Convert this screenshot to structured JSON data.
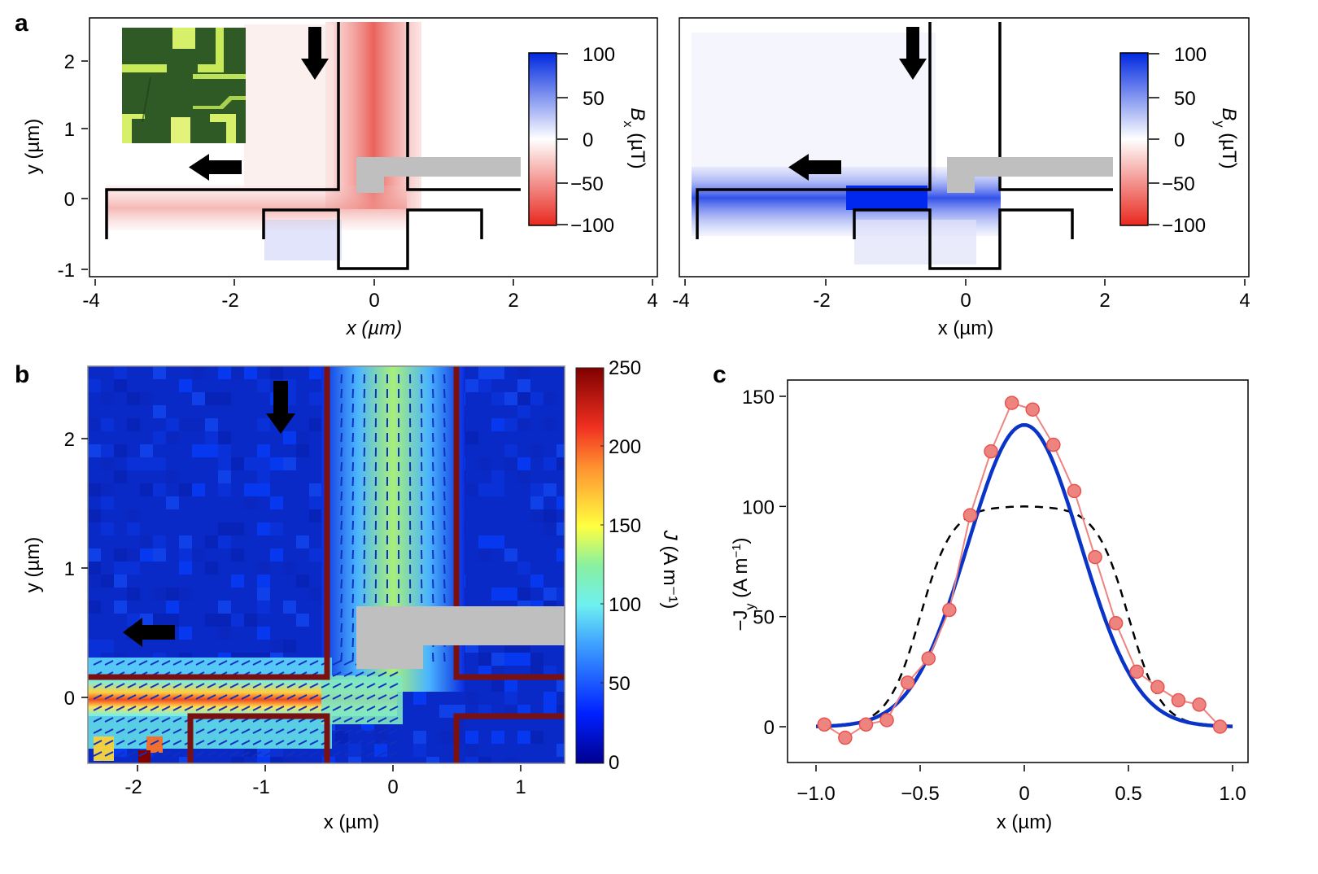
{
  "figure": {
    "panel_labels": [
      "a",
      "b",
      "c"
    ]
  },
  "chart_data": [
    {
      "panel": "a-left",
      "type": "heatmap",
      "quantity": "Bx",
      "xlabel": "x (µm)",
      "ylabel": "y (µm)",
      "xlim": [
        -4,
        4
      ],
      "ylim": [
        -1,
        2.5
      ],
      "xticks": [
        "-4",
        "-2",
        "0",
        "2",
        "4"
      ],
      "yticks": [
        "-1",
        "0",
        "1",
        "2"
      ],
      "colorbar": {
        "label": "B_x (µT)",
        "label_main": "B",
        "label_sub": "x",
        "label_unit": " (µT)",
        "range": [
          -100,
          100
        ],
        "ticks": [
          "100",
          "50",
          "0",
          "−50",
          "−100"
        ],
        "colors": {
          "high": "#0028e0",
          "mid": "#ffffff",
          "low": "#e8281e"
        }
      },
      "arrows": [
        {
          "direction": "down"
        },
        {
          "direction": "left"
        }
      ],
      "inset": "optical micrograph of device",
      "features": [
        {
          "description": "negative Bx along vertical channel",
          "x_range": [
            -0.5,
            0.5
          ],
          "value_approx": -70
        },
        {
          "description": "weak negative Bx along horizontal channel",
          "y_range": [
            -0.3,
            0.2
          ],
          "value_approx": -25
        },
        {
          "description": "weak positive Bx below junction",
          "x_range": [
            -1.5,
            -0.5
          ],
          "value_approx": 15
        }
      ]
    },
    {
      "panel": "a-right",
      "type": "heatmap",
      "quantity": "By",
      "xlabel": "x (µm)",
      "ylabel": "",
      "xlim": [
        -4,
        4
      ],
      "ylim": [
        -1,
        2.5
      ],
      "xticks": [
        "-4",
        "-2",
        "0",
        "2",
        "4"
      ],
      "colorbar": {
        "label": "B_y (µT)",
        "label_main": "B",
        "label_sub": "y",
        "label_unit": " (µT)",
        "range": [
          -100,
          100
        ],
        "ticks": [
          "100",
          "50",
          "0",
          "−50",
          "−100"
        ],
        "colors": {
          "high": "#0028e0",
          "mid": "#ffffff",
          "low": "#e8281e"
        }
      },
      "arrows": [
        {
          "direction": "down"
        },
        {
          "direction": "left"
        }
      ],
      "features": [
        {
          "description": "strong positive By along horizontal channel",
          "x_range": [
            -3.5,
            0.2
          ],
          "value_approx": 90
        }
      ]
    },
    {
      "panel": "b",
      "type": "heatmap",
      "quantity": "J",
      "xlabel": "x (µm)",
      "ylabel": "y (µm)",
      "xlim": [
        -2.3,
        1.3
      ],
      "ylim": [
        -0.5,
        2.55
      ],
      "xticks": [
        "-2",
        "-1",
        "0",
        "1"
      ],
      "yticks": [
        "0",
        "1",
        "2"
      ],
      "colorbar": {
        "label": "J (A m⁻¹)",
        "label_main": "J",
        "label_unit": " (A m⁻¹)",
        "range": [
          0,
          250
        ],
        "ticks": [
          "250",
          "200",
          "150",
          "100",
          "50",
          "0"
        ],
        "colormap": "jet"
      },
      "arrows": [
        {
          "direction": "down"
        },
        {
          "direction": "left"
        }
      ],
      "features": [
        {
          "description": "vertical channel current ~100-140 A/m",
          "x_range": [
            -0.5,
            0.5
          ]
        },
        {
          "description": "horizontal channel current peak ~230 A/m near x=-1",
          "y_range": [
            -0.15,
            0.15
          ]
        }
      ]
    },
    {
      "panel": "c",
      "type": "line",
      "xlabel": "x (µm)",
      "ylabel": "−J_y (A m⁻¹)",
      "ylabel_main": "−J",
      "ylabel_sub": "y",
      "ylabel_unit": " (A m",
      "ylabel_sup": "−1",
      "ylabel_end": ")",
      "xlim": [
        -1.05,
        1.08
      ],
      "ylim": [
        -17,
        157
      ],
      "xticks": [
        "−1.0",
        "−0.5",
        "0",
        "0.5",
        "1.0"
      ],
      "xtick_values": [
        -1.0,
        -0.5,
        0,
        0.5,
        1.0
      ],
      "yticks": [
        "0",
        "50",
        "100",
        "150"
      ],
      "ytick_values": [
        0,
        50,
        100,
        150
      ],
      "series": [
        {
          "name": "measured",
          "style": "markers+line",
          "color": "#ee8480",
          "edge": "#e8534e",
          "x": [
            -0.96,
            -0.86,
            -0.76,
            -0.66,
            -0.56,
            -0.46,
            -0.36,
            -0.26,
            -0.16,
            -0.06,
            0.04,
            0.14,
            0.24,
            0.34,
            0.44,
            0.54,
            0.64,
            0.74,
            0.84,
            0.94
          ],
          "y": [
            1,
            -5,
            1,
            3,
            20,
            31,
            53,
            96,
            125,
            147,
            144,
            128,
            107,
            77,
            47,
            25,
            18,
            12,
            10,
            0
          ]
        },
        {
          "name": "gaussian-fit",
          "style": "solid",
          "color": "#0a34c8",
          "model": "gaussian",
          "amplitude": 137,
          "center": 0,
          "sigma": 0.27
        },
        {
          "name": "flat-profile",
          "style": "dashed",
          "color": "#000000",
          "model": "super-gaussian",
          "amplitude": 100,
          "center": 0,
          "half_width": 0.5,
          "edge_width": 0.17
        }
      ]
    }
  ]
}
